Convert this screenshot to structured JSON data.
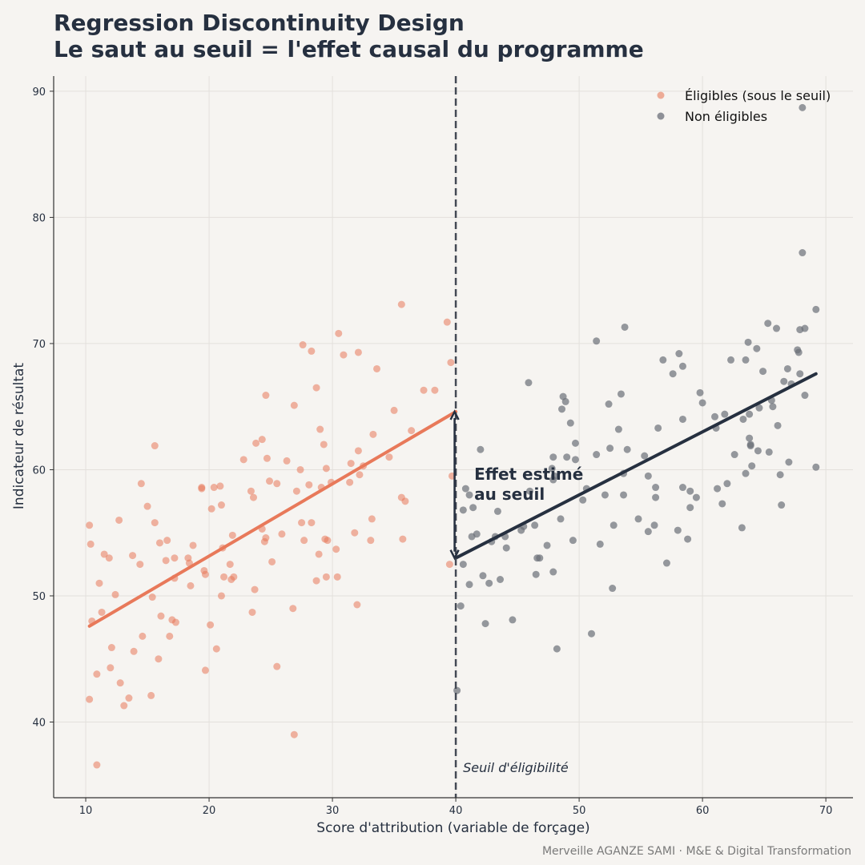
{
  "chart_data": {
    "type": "scatter",
    "title": "Regression Discontinuity Design",
    "subtitle": "Le saut au seuil = l'effet causal du programme",
    "xlabel": "Score d'attribution (variable de forçage)",
    "ylabel": "Indicateur de résultat",
    "xlim": [
      7.4,
      72.2
    ],
    "ylim": [
      34.0,
      91.2
    ],
    "xticks": [
      10,
      20,
      30,
      40,
      50,
      60,
      70
    ],
    "yticks": [
      40,
      50,
      60,
      70,
      80,
      90
    ],
    "grid": true,
    "legend_position": "top-right",
    "threshold": {
      "x": 40,
      "label": "Seuil d'éligibilité"
    },
    "annotation": {
      "line1": "Effet estimé",
      "line2": "au seuil",
      "arrow_from_y": 64.6,
      "arrow_to_y": 53.0
    },
    "fit_lines": [
      {
        "series": "Éligibles (sous le seuil)",
        "x": [
          10.3,
          40
        ],
        "y": [
          47.6,
          64.6
        ]
      },
      {
        "series": "Non éligibles",
        "x": [
          40,
          69.2
        ],
        "y": [
          53.0,
          67.6
        ]
      }
    ],
    "series": [
      {
        "name": "Éligibles (sous le seuil)",
        "color": "#e8795a",
        "points": [
          [
            10.3,
            55.6
          ],
          [
            10.4,
            54.1
          ],
          [
            10.3,
            41.8
          ],
          [
            10.5,
            48.0
          ],
          [
            10.9,
            36.6
          ],
          [
            11.1,
            51.0
          ],
          [
            11.3,
            48.7
          ],
          [
            11.5,
            53.3
          ],
          [
            11.9,
            53.0
          ],
          [
            10.9,
            43.8
          ],
          [
            12.1,
            45.9
          ],
          [
            12.0,
            44.3
          ],
          [
            12.4,
            50.1
          ],
          [
            12.7,
            56.0
          ],
          [
            12.8,
            43.1
          ],
          [
            13.1,
            41.3
          ],
          [
            13.5,
            41.9
          ],
          [
            13.8,
            53.2
          ],
          [
            13.9,
            45.6
          ],
          [
            14.4,
            52.5
          ],
          [
            14.5,
            58.9
          ],
          [
            14.6,
            46.8
          ],
          [
            15.0,
            57.1
          ],
          [
            15.3,
            42.1
          ],
          [
            15.4,
            49.9
          ],
          [
            15.6,
            55.8
          ],
          [
            15.6,
            61.9
          ],
          [
            15.9,
            45.0
          ],
          [
            16.0,
            54.2
          ],
          [
            16.1,
            48.4
          ],
          [
            16.5,
            52.8
          ],
          [
            16.6,
            54.4
          ],
          [
            16.8,
            46.8
          ],
          [
            17.0,
            48.1
          ],
          [
            17.2,
            53.0
          ],
          [
            17.2,
            51.4
          ],
          [
            17.3,
            47.9
          ],
          [
            18.3,
            53.0
          ],
          [
            18.4,
            52.6
          ],
          [
            18.5,
            50.8
          ],
          [
            18.7,
            54.0
          ],
          [
            19.4,
            58.6
          ],
          [
            19.4,
            58.5
          ],
          [
            19.6,
            52.0
          ],
          [
            19.7,
            51.7
          ],
          [
            19.7,
            44.1
          ],
          [
            20.1,
            47.7
          ],
          [
            20.2,
            56.9
          ],
          [
            20.4,
            58.6
          ],
          [
            20.6,
            45.8
          ],
          [
            20.9,
            58.7
          ],
          [
            21.0,
            57.2
          ],
          [
            21.0,
            50.0
          ],
          [
            21.1,
            53.8
          ],
          [
            21.2,
            51.5
          ],
          [
            21.7,
            52.5
          ],
          [
            21.8,
            51.3
          ],
          [
            21.9,
            54.8
          ],
          [
            22.0,
            51.5
          ],
          [
            22.8,
            60.8
          ],
          [
            23.4,
            58.3
          ],
          [
            23.5,
            48.7
          ],
          [
            23.6,
            57.8
          ],
          [
            23.7,
            50.5
          ],
          [
            23.8,
            62.1
          ],
          [
            24.3,
            55.3
          ],
          [
            24.3,
            62.4
          ],
          [
            24.5,
            54.3
          ],
          [
            24.6,
            54.6
          ],
          [
            24.6,
            65.9
          ],
          [
            24.7,
            60.9
          ],
          [
            24.9,
            59.1
          ],
          [
            25.1,
            52.7
          ],
          [
            25.5,
            58.9
          ],
          [
            25.5,
            44.4
          ],
          [
            25.9,
            54.9
          ],
          [
            26.3,
            60.7
          ],
          [
            26.8,
            49.0
          ],
          [
            26.9,
            65.1
          ],
          [
            26.9,
            39.0
          ],
          [
            27.1,
            58.3
          ],
          [
            27.4,
            60.0
          ],
          [
            27.5,
            55.8
          ],
          [
            27.6,
            69.9
          ],
          [
            27.7,
            54.4
          ],
          [
            28.1,
            58.8
          ],
          [
            28.3,
            55.8
          ],
          [
            28.3,
            69.4
          ],
          [
            28.7,
            66.5
          ],
          [
            28.7,
            51.2
          ],
          [
            28.9,
            53.3
          ],
          [
            29.0,
            63.2
          ],
          [
            29.1,
            58.6
          ],
          [
            29.3,
            62.0
          ],
          [
            29.4,
            54.5
          ],
          [
            29.5,
            60.1
          ],
          [
            29.5,
            51.5
          ],
          [
            29.6,
            54.4
          ],
          [
            29.9,
            59.0
          ],
          [
            30.3,
            53.7
          ],
          [
            30.4,
            51.5
          ],
          [
            30.5,
            70.8
          ],
          [
            30.9,
            69.1
          ],
          [
            31.4,
            59.0
          ],
          [
            31.5,
            60.5
          ],
          [
            31.8,
            55.0
          ],
          [
            32.0,
            49.3
          ],
          [
            32.1,
            61.5
          ],
          [
            32.1,
            69.3
          ],
          [
            32.2,
            59.6
          ],
          [
            32.5,
            60.3
          ],
          [
            33.1,
            54.4
          ],
          [
            33.2,
            56.1
          ],
          [
            33.3,
            62.8
          ],
          [
            33.6,
            68.0
          ],
          [
            34.6,
            61.0
          ],
          [
            35.0,
            64.7
          ],
          [
            35.6,
            73.1
          ],
          [
            35.6,
            57.8
          ],
          [
            35.7,
            54.5
          ],
          [
            35.9,
            57.5
          ],
          [
            36.4,
            63.1
          ],
          [
            37.4,
            66.3
          ],
          [
            38.3,
            66.3
          ],
          [
            39.3,
            71.7
          ],
          [
            39.5,
            52.5
          ],
          [
            39.6,
            68.5
          ],
          [
            39.7,
            59.5
          ]
        ]
      },
      {
        "name": "Non éligibles",
        "color": "#6b6f78",
        "points": [
          [
            40.1,
            42.5
          ],
          [
            40.4,
            49.2
          ],
          [
            40.6,
            56.8
          ],
          [
            40.6,
            52.5
          ],
          [
            40.8,
            58.5
          ],
          [
            41.1,
            50.9
          ],
          [
            41.1,
            58.0
          ],
          [
            41.3,
            54.7
          ],
          [
            41.4,
            57.0
          ],
          [
            41.7,
            54.9
          ],
          [
            42.0,
            61.6
          ],
          [
            42.2,
            51.6
          ],
          [
            42.4,
            47.8
          ],
          [
            42.7,
            51.0
          ],
          [
            42.9,
            54.3
          ],
          [
            43.2,
            54.7
          ],
          [
            43.4,
            56.7
          ],
          [
            43.6,
            51.3
          ],
          [
            44.0,
            54.7
          ],
          [
            44.1,
            53.8
          ],
          [
            44.6,
            48.1
          ],
          [
            45.3,
            55.2
          ],
          [
            45.5,
            55.5
          ],
          [
            45.9,
            66.9
          ],
          [
            46.0,
            58.3
          ],
          [
            46.4,
            55.6
          ],
          [
            46.5,
            51.7
          ],
          [
            46.6,
            53.0
          ],
          [
            46.8,
            53.0
          ],
          [
            47.4,
            54.0
          ],
          [
            47.8,
            60.1
          ],
          [
            47.9,
            61.0
          ],
          [
            47.9,
            59.2
          ],
          [
            48.0,
            59.5
          ],
          [
            47.9,
            51.9
          ],
          [
            48.2,
            45.8
          ],
          [
            48.5,
            56.1
          ],
          [
            48.6,
            64.8
          ],
          [
            48.7,
            65.8
          ],
          [
            48.9,
            65.4
          ],
          [
            49.0,
            61.0
          ],
          [
            49.3,
            63.7
          ],
          [
            49.5,
            54.4
          ],
          [
            49.7,
            62.1
          ],
          [
            49.7,
            60.8
          ],
          [
            50.3,
            57.6
          ],
          [
            50.6,
            58.5
          ],
          [
            51.0,
            47.0
          ],
          [
            51.4,
            70.2
          ],
          [
            51.4,
            61.2
          ],
          [
            51.7,
            54.1
          ],
          [
            52.1,
            58.0
          ],
          [
            52.4,
            65.2
          ],
          [
            52.5,
            61.7
          ],
          [
            52.7,
            50.6
          ],
          [
            52.8,
            55.6
          ],
          [
            53.2,
            63.2
          ],
          [
            53.4,
            66.0
          ],
          [
            53.6,
            59.7
          ],
          [
            53.6,
            58.0
          ],
          [
            53.7,
            71.3
          ],
          [
            53.9,
            61.6
          ],
          [
            54.8,
            56.1
          ],
          [
            55.3,
            61.1
          ],
          [
            55.6,
            55.1
          ],
          [
            55.6,
            59.5
          ],
          [
            56.1,
            55.6
          ],
          [
            56.2,
            58.6
          ],
          [
            56.2,
            57.8
          ],
          [
            56.4,
            63.3
          ],
          [
            56.8,
            68.7
          ],
          [
            57.1,
            52.6
          ],
          [
            57.6,
            67.6
          ],
          [
            58.0,
            55.2
          ],
          [
            58.1,
            69.2
          ],
          [
            58.4,
            64.0
          ],
          [
            58.4,
            58.6
          ],
          [
            58.4,
            68.2
          ],
          [
            58.8,
            54.5
          ],
          [
            59.0,
            57.0
          ],
          [
            59.0,
            58.3
          ],
          [
            59.5,
            57.8
          ],
          [
            59.8,
            66.1
          ],
          [
            60.0,
            65.3
          ],
          [
            61.0,
            64.2
          ],
          [
            61.1,
            63.3
          ],
          [
            61.2,
            58.5
          ],
          [
            61.6,
            57.3
          ],
          [
            61.8,
            64.4
          ],
          [
            62.0,
            58.9
          ],
          [
            62.3,
            68.7
          ],
          [
            62.6,
            61.2
          ],
          [
            63.2,
            55.4
          ],
          [
            63.3,
            64.0
          ],
          [
            63.5,
            59.7
          ],
          [
            63.5,
            68.7
          ],
          [
            63.7,
            70.1
          ],
          [
            63.8,
            64.4
          ],
          [
            63.8,
            62.5
          ],
          [
            63.9,
            62.0
          ],
          [
            63.9,
            61.9
          ],
          [
            64.0,
            60.3
          ],
          [
            64.4,
            69.6
          ],
          [
            64.5,
            61.5
          ],
          [
            64.6,
            64.9
          ],
          [
            64.9,
            67.8
          ],
          [
            65.3,
            71.6
          ],
          [
            65.4,
            61.4
          ],
          [
            65.6,
            65.5
          ],
          [
            65.7,
            65.0
          ],
          [
            66.0,
            71.2
          ],
          [
            66.1,
            63.5
          ],
          [
            66.3,
            59.6
          ],
          [
            66.4,
            57.2
          ],
          [
            66.6,
            67.0
          ],
          [
            66.9,
            68.0
          ],
          [
            67.0,
            60.6
          ],
          [
            67.2,
            66.8
          ],
          [
            67.7,
            69.5
          ],
          [
            67.8,
            69.3
          ],
          [
            67.9,
            71.1
          ],
          [
            67.9,
            67.6
          ],
          [
            68.1,
            88.7
          ],
          [
            68.1,
            77.2
          ],
          [
            68.3,
            71.2
          ],
          [
            68.3,
            65.9
          ],
          [
            69.2,
            72.7
          ],
          [
            69.2,
            60.2
          ]
        ]
      }
    ]
  },
  "footer": "Merveille AGANZE SAMI  ·  M&E & Digital Transformation"
}
